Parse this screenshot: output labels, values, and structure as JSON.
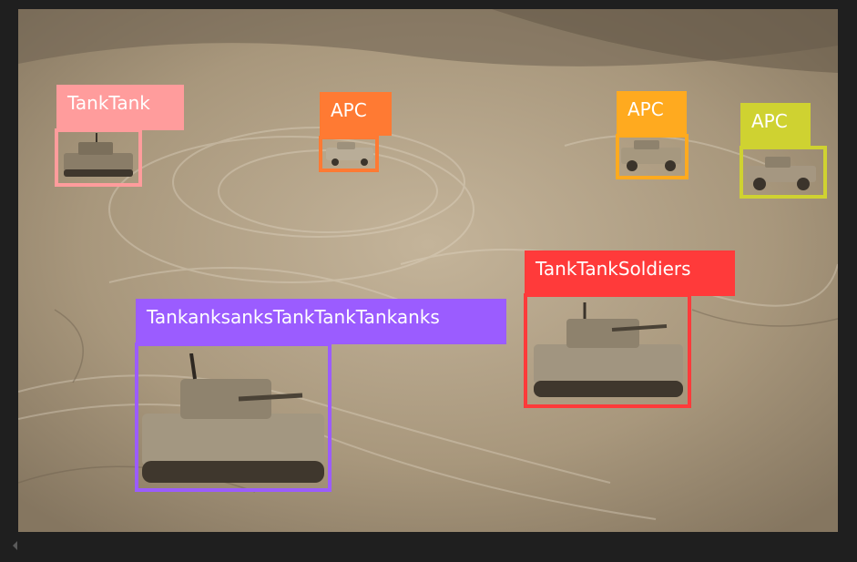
{
  "detections": [
    {
      "label": "TankTank",
      "color": "#ff9c9c"
    },
    {
      "label": "APC",
      "color": "#ff7a33"
    },
    {
      "label": "APC",
      "color": "#ffaa1f"
    },
    {
      "label": "APC",
      "color": "#cfd231"
    },
    {
      "label": "TankTankSoldiers",
      "color": "#ff3a3a"
    },
    {
      "label": "TankanksanksTankTankTankanks",
      "color": "#9b5cff"
    }
  ],
  "icons": {
    "scroll": "chevron-left-icon"
  }
}
